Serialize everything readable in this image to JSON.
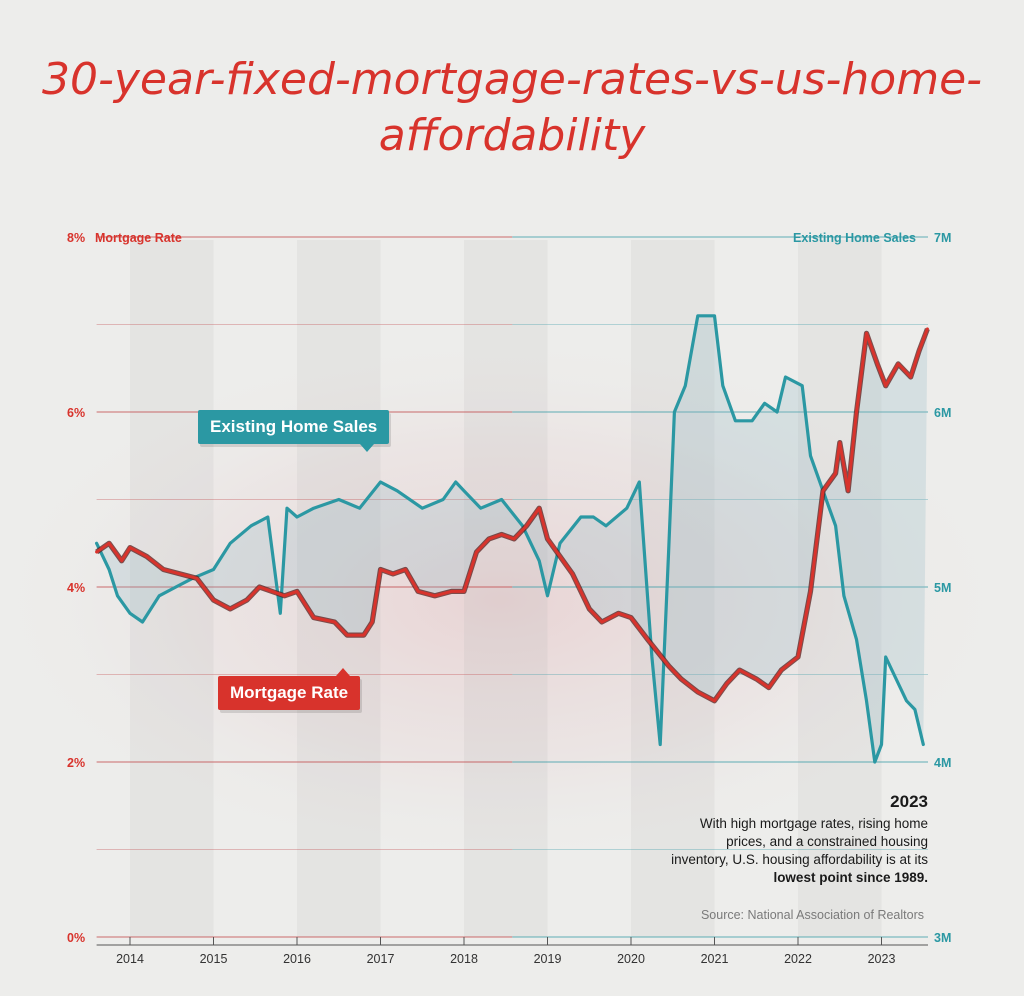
{
  "title": "30-year-fixed-mortgage-rates-vs-us-home-affordability",
  "annotation": {
    "year": "2023",
    "text_before": "With high mortgage rates, rising home prices, and a constrained housing inventory, U.S. housing affordability is at its ",
    "text_bold": "lowest point since 1989.",
    "source": "Source: National Association of Realtors"
  },
  "callouts": {
    "sales": "Existing Home Sales",
    "rate": "Mortgage Rate"
  },
  "colors": {
    "rate": "#d8332c",
    "sales": "#2b98a3",
    "title": "#d8332c",
    "note": "#1a1a1a"
  },
  "chart_data": {
    "type": "line",
    "x_axis": {
      "range": [
        2013.6,
        2023.55
      ],
      "ticks": [
        2014,
        2015,
        2016,
        2017,
        2018,
        2019,
        2020,
        2021,
        2022,
        2023
      ],
      "tick_labels": [
        "2014",
        "2015",
        "2016",
        "2017",
        "2018",
        "2019",
        "2020",
        "2021",
        "2022",
        "2023"
      ]
    },
    "left_axis": {
      "label": "Mortgage Rate",
      "range": [
        0,
        8
      ],
      "ticks": [
        0,
        2,
        4,
        6,
        8
      ],
      "tick_labels": [
        "0%",
        "2%",
        "4%",
        "6%",
        "8%"
      ]
    },
    "right_axis": {
      "label": "Existing Home Sales",
      "range": [
        3,
        7
      ],
      "ticks": [
        3,
        4,
        5,
        6,
        7
      ],
      "tick_labels": [
        "3M",
        "4M",
        "5M",
        "6M",
        "7M"
      ]
    },
    "series": [
      {
        "name": "Mortgage Rate",
        "axis": "left",
        "unit": "%",
        "points": [
          [
            2013.6,
            4.4
          ],
          [
            2013.75,
            4.5
          ],
          [
            2013.9,
            4.3
          ],
          [
            2014.0,
            4.45
          ],
          [
            2014.2,
            4.35
          ],
          [
            2014.4,
            4.2
          ],
          [
            2014.6,
            4.15
          ],
          [
            2014.8,
            4.1
          ],
          [
            2015.0,
            3.85
          ],
          [
            2015.2,
            3.75
          ],
          [
            2015.4,
            3.85
          ],
          [
            2015.55,
            4.0
          ],
          [
            2015.7,
            3.95
          ],
          [
            2015.85,
            3.9
          ],
          [
            2016.0,
            3.95
          ],
          [
            2016.2,
            3.65
          ],
          [
            2016.45,
            3.6
          ],
          [
            2016.6,
            3.45
          ],
          [
            2016.8,
            3.45
          ],
          [
            2016.9,
            3.6
          ],
          [
            2017.0,
            4.2
          ],
          [
            2017.15,
            4.15
          ],
          [
            2017.3,
            4.2
          ],
          [
            2017.45,
            3.95
          ],
          [
            2017.65,
            3.9
          ],
          [
            2017.85,
            3.95
          ],
          [
            2018.0,
            3.95
          ],
          [
            2018.15,
            4.4
          ],
          [
            2018.3,
            4.55
          ],
          [
            2018.45,
            4.6
          ],
          [
            2018.6,
            4.55
          ],
          [
            2018.75,
            4.7
          ],
          [
            2018.9,
            4.9
          ],
          [
            2019.0,
            4.55
          ],
          [
            2019.15,
            4.35
          ],
          [
            2019.3,
            4.15
          ],
          [
            2019.5,
            3.75
          ],
          [
            2019.65,
            3.6
          ],
          [
            2019.85,
            3.7
          ],
          [
            2020.0,
            3.65
          ],
          [
            2020.2,
            3.4
          ],
          [
            2020.45,
            3.1
          ],
          [
            2020.6,
            2.95
          ],
          [
            2020.8,
            2.8
          ],
          [
            2021.0,
            2.7
          ],
          [
            2021.15,
            2.9
          ],
          [
            2021.3,
            3.05
          ],
          [
            2021.5,
            2.95
          ],
          [
            2021.65,
            2.85
          ],
          [
            2021.8,
            3.05
          ],
          [
            2022.0,
            3.2
          ],
          [
            2022.15,
            3.95
          ],
          [
            2022.3,
            5.1
          ],
          [
            2022.45,
            5.3
          ],
          [
            2022.5,
            5.65
          ],
          [
            2022.6,
            5.1
          ],
          [
            2022.7,
            6.0
          ],
          [
            2022.82,
            6.9
          ],
          [
            2022.95,
            6.55
          ],
          [
            2023.05,
            6.3
          ],
          [
            2023.2,
            6.55
          ],
          [
            2023.35,
            6.4
          ],
          [
            2023.45,
            6.7
          ],
          [
            2023.55,
            6.95
          ]
        ]
      },
      {
        "name": "Existing Home Sales",
        "axis": "right",
        "unit": "M",
        "points": [
          [
            2013.6,
            5.25
          ],
          [
            2013.75,
            5.1
          ],
          [
            2013.85,
            4.95
          ],
          [
            2014.0,
            4.85
          ],
          [
            2014.15,
            4.8
          ],
          [
            2014.35,
            4.95
          ],
          [
            2014.55,
            5.0
          ],
          [
            2014.75,
            5.05
          ],
          [
            2015.0,
            5.1
          ],
          [
            2015.2,
            5.25
          ],
          [
            2015.45,
            5.35
          ],
          [
            2015.65,
            5.4
          ],
          [
            2015.8,
            4.85
          ],
          [
            2015.88,
            5.45
          ],
          [
            2016.0,
            5.4
          ],
          [
            2016.2,
            5.45
          ],
          [
            2016.5,
            5.5
          ],
          [
            2016.75,
            5.45
          ],
          [
            2017.0,
            5.6
          ],
          [
            2017.2,
            5.55
          ],
          [
            2017.5,
            5.45
          ],
          [
            2017.75,
            5.5
          ],
          [
            2017.9,
            5.6
          ],
          [
            2018.0,
            5.55
          ],
          [
            2018.2,
            5.45
          ],
          [
            2018.45,
            5.5
          ],
          [
            2018.7,
            5.35
          ],
          [
            2018.9,
            5.15
          ],
          [
            2019.0,
            4.95
          ],
          [
            2019.15,
            5.25
          ],
          [
            2019.4,
            5.4
          ],
          [
            2019.55,
            5.4
          ],
          [
            2019.7,
            5.35
          ],
          [
            2019.95,
            5.45
          ],
          [
            2020.1,
            5.6
          ],
          [
            2020.25,
            4.6
          ],
          [
            2020.35,
            4.1
          ],
          [
            2020.45,
            5.2
          ],
          [
            2020.52,
            6.0
          ],
          [
            2020.65,
            6.15
          ],
          [
            2020.8,
            6.55
          ],
          [
            2021.0,
            6.55
          ],
          [
            2021.1,
            6.15
          ],
          [
            2021.25,
            5.95
          ],
          [
            2021.45,
            5.95
          ],
          [
            2021.6,
            6.05
          ],
          [
            2021.75,
            6.0
          ],
          [
            2021.85,
            6.2
          ],
          [
            2022.05,
            6.15
          ],
          [
            2022.15,
            5.75
          ],
          [
            2022.3,
            5.55
          ],
          [
            2022.45,
            5.35
          ],
          [
            2022.55,
            4.95
          ],
          [
            2022.7,
            4.7
          ],
          [
            2022.82,
            4.35
          ],
          [
            2022.92,
            4.0
          ],
          [
            2023.0,
            4.1
          ],
          [
            2023.05,
            4.6
          ],
          [
            2023.15,
            4.5
          ],
          [
            2023.3,
            4.35
          ],
          [
            2023.4,
            4.3
          ],
          [
            2023.5,
            4.1
          ]
        ]
      }
    ]
  }
}
